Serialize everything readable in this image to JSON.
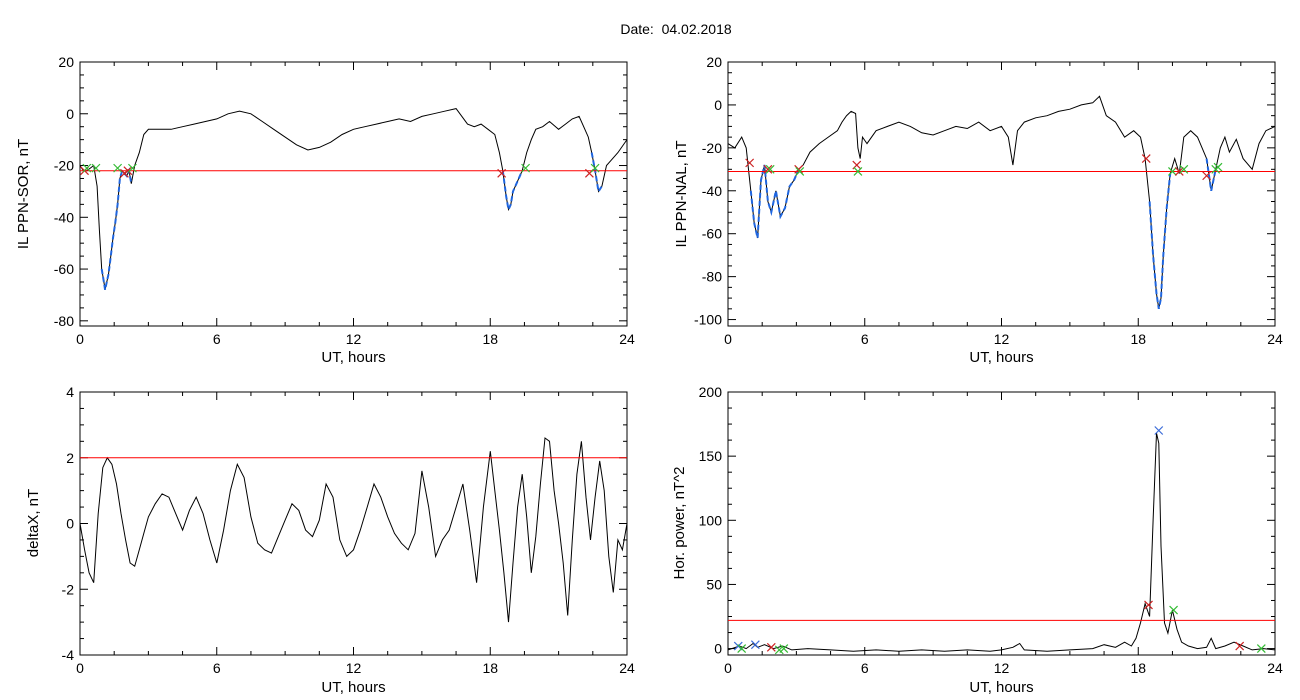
{
  "page": {
    "title": "Date:  04.02.2018",
    "colors": {
      "data": "#000000",
      "threshold": "#ff0000",
      "highlight": "#1f66e0",
      "marker_red": "#cc2222",
      "marker_green": "#33bb33",
      "marker_blue": "#3a6bd8"
    }
  },
  "chart_data": [
    {
      "id": "ppn-sor",
      "type": "line",
      "xlabel": "UT, hours",
      "ylabel": "IL PPN-SOR, nT",
      "xlim": [
        0,
        24
      ],
      "ylim": [
        -82,
        20
      ],
      "xticks": [
        0,
        6,
        12,
        18,
        24
      ],
      "yticks": [
        -80,
        -60,
        -40,
        -20,
        0,
        20
      ],
      "threshold": -22,
      "series": [
        {
          "x": [
            0,
            0.15,
            0.3,
            0.45,
            0.6,
            0.75,
            0.85,
            0.95,
            1.05,
            1.1,
            1.15,
            1.25,
            1.35,
            1.45,
            1.55,
            1.65,
            1.75,
            1.85,
            1.95,
            2.05,
            2.15,
            2.25,
            2.4,
            2.6,
            2.8,
            3.0,
            3.5,
            4.0,
            4.5,
            5.0,
            5.5,
            6.0,
            6.5,
            7.0,
            7.5,
            8.0,
            8.5,
            9.0,
            9.5,
            10.0,
            10.5,
            11.0,
            11.5,
            12.0,
            12.5,
            13.0,
            13.5,
            14.0,
            14.5,
            15.0,
            15.5,
            16.0,
            16.5,
            17.0,
            17.3,
            17.6,
            17.9,
            18.2,
            18.4,
            18.55,
            18.7,
            18.8,
            18.9,
            19.0,
            19.2,
            19.4,
            19.6,
            19.8,
            20.0,
            20.3,
            20.6,
            21.0,
            21.3,
            21.6,
            21.9,
            22.1,
            22.3,
            22.45,
            22.6,
            22.75,
            22.9,
            23.1,
            23.3,
            23.6,
            24.0
          ],
          "y": [
            -20,
            -22,
            -22,
            -21,
            -20,
            -28,
            -45,
            -60,
            -65,
            -68,
            -66,
            -62,
            -55,
            -48,
            -42,
            -35,
            -25,
            -22,
            -23,
            -24,
            -22,
            -27,
            -20,
            -15,
            -8,
            -6,
            -6,
            -6,
            -5,
            -4,
            -3,
            -2,
            0,
            1,
            0,
            -3,
            -6,
            -9,
            -12,
            -14,
            -13,
            -11,
            -8,
            -6,
            -5,
            -4,
            -3,
            -2,
            -3,
            -1,
            0,
            1,
            2,
            -4,
            -5,
            -4,
            -6,
            -8,
            -15,
            -22,
            -32,
            -37,
            -35,
            -30,
            -26,
            -22,
            -15,
            -10,
            -6,
            -5,
            -3,
            -6,
            -4,
            -2,
            -1,
            -5,
            -9,
            -15,
            -22,
            -30,
            -28,
            -20,
            -18,
            -15,
            -10
          ],
          "highlight_ranges": [
            [
              0.9,
              2.3
            ],
            [
              18.55,
              19.55
            ],
            [
              22.35,
              23.0
            ]
          ]
        }
      ],
      "markers": [
        {
          "x": 0.2,
          "y": -22,
          "color": "red"
        },
        {
          "x": 0.3,
          "y": -21,
          "color": "green"
        },
        {
          "x": 0.7,
          "y": -21,
          "color": "green"
        },
        {
          "x": 1.65,
          "y": -21,
          "color": "green"
        },
        {
          "x": 1.95,
          "y": -23,
          "color": "red"
        },
        {
          "x": 2.1,
          "y": -22,
          "color": "red"
        },
        {
          "x": 2.3,
          "y": -21,
          "color": "green"
        },
        {
          "x": 18.5,
          "y": -23,
          "color": "red"
        },
        {
          "x": 19.55,
          "y": -21,
          "color": "green"
        },
        {
          "x": 22.35,
          "y": -23,
          "color": "red"
        },
        {
          "x": 22.6,
          "y": -21,
          "color": "green"
        }
      ]
    },
    {
      "id": "ppn-nal",
      "type": "line",
      "xlabel": "UT, hours",
      "ylabel": "IL PPN-NAL, nT",
      "xlim": [
        0,
        24
      ],
      "ylim": [
        -103,
        20
      ],
      "xticks": [
        0,
        6,
        12,
        18,
        24
      ],
      "yticks": [
        -100,
        -80,
        -60,
        -40,
        -20,
        0,
        20
      ],
      "threshold": -31,
      "series": [
        {
          "x": [
            0,
            0.3,
            0.6,
            0.8,
            1.0,
            1.15,
            1.3,
            1.45,
            1.6,
            1.75,
            1.9,
            2.1,
            2.3,
            2.5,
            2.7,
            2.9,
            3.1,
            3.3,
            3.6,
            4.0,
            4.4,
            4.8,
            5.0,
            5.2,
            5.4,
            5.6,
            5.7,
            5.8,
            5.9,
            6.1,
            6.5,
            7.0,
            7.5,
            8.0,
            8.5,
            9.0,
            9.5,
            10.0,
            10.5,
            11.0,
            11.5,
            12.0,
            12.3,
            12.5,
            12.7,
            13.0,
            13.5,
            14.0,
            14.5,
            15.0,
            15.5,
            16.0,
            16.3,
            16.6,
            17.0,
            17.4,
            17.8,
            18.1,
            18.3,
            18.5,
            18.65,
            18.8,
            18.9,
            19.0,
            19.1,
            19.25,
            19.4,
            19.6,
            19.8,
            20.0,
            20.3,
            20.6,
            21.0,
            21.2,
            21.4,
            21.6,
            21.8,
            22.0,
            22.3,
            22.6,
            23.0,
            23.3,
            23.6,
            24.0
          ],
          "y": [
            -18,
            -20,
            -15,
            -20,
            -40,
            -55,
            -62,
            -35,
            -28,
            -45,
            -50,
            -40,
            -52,
            -48,
            -38,
            -35,
            -30,
            -28,
            -22,
            -18,
            -15,
            -12,
            -8,
            -5,
            -3,
            -4,
            -20,
            -25,
            -15,
            -18,
            -12,
            -10,
            -8,
            -10,
            -13,
            -14,
            -12,
            -10,
            -11,
            -8,
            -12,
            -10,
            -15,
            -28,
            -12,
            -8,
            -6,
            -5,
            -3,
            -2,
            0,
            1,
            4,
            -5,
            -8,
            -15,
            -12,
            -15,
            -25,
            -45,
            -70,
            -88,
            -95,
            -90,
            -70,
            -48,
            -32,
            -25,
            -32,
            -15,
            -12,
            -15,
            -25,
            -40,
            -30,
            -20,
            -15,
            -22,
            -16,
            -25,
            -30,
            -18,
            -12,
            -10
          ],
          "highlight_ranges": [
            [
              1.0,
              3.2
            ],
            [
              18.5,
              19.5
            ],
            [
              21.0,
              21.5
            ]
          ]
        }
      ],
      "markers": [
        {
          "x": 0.95,
          "y": -27,
          "color": "red"
        },
        {
          "x": 1.75,
          "y": -30,
          "color": "red"
        },
        {
          "x": 1.85,
          "y": -30,
          "color": "green"
        },
        {
          "x": 3.1,
          "y": -30,
          "color": "red"
        },
        {
          "x": 3.15,
          "y": -31,
          "color": "green"
        },
        {
          "x": 5.65,
          "y": -28,
          "color": "red"
        },
        {
          "x": 5.7,
          "y": -31,
          "color": "green"
        },
        {
          "x": 18.35,
          "y": -25,
          "color": "red"
        },
        {
          "x": 19.5,
          "y": -31,
          "color": "green"
        },
        {
          "x": 19.8,
          "y": -31,
          "color": "red"
        },
        {
          "x": 20.0,
          "y": -30,
          "color": "green"
        },
        {
          "x": 21.0,
          "y": -33,
          "color": "red"
        },
        {
          "x": 21.4,
          "y": -30,
          "color": "green"
        },
        {
          "x": 21.5,
          "y": -29,
          "color": "green"
        }
      ]
    },
    {
      "id": "deltax",
      "type": "line",
      "xlabel": "UT, hours",
      "ylabel": "deltaX, nT",
      "xlim": [
        0,
        24
      ],
      "ylim": [
        -4,
        4
      ],
      "xticks": [
        0,
        6,
        12,
        18,
        24
      ],
      "yticks": [
        -4,
        -2,
        0,
        2,
        4
      ],
      "threshold": 2,
      "series": [
        {
          "x": [
            0,
            0.2,
            0.4,
            0.6,
            0.8,
            1.0,
            1.2,
            1.4,
            1.6,
            1.8,
            2.0,
            2.2,
            2.4,
            2.6,
            2.8,
            3.0,
            3.3,
            3.6,
            3.9,
            4.2,
            4.5,
            4.8,
            5.1,
            5.4,
            5.7,
            6.0,
            6.3,
            6.6,
            6.9,
            7.2,
            7.5,
            7.8,
            8.1,
            8.4,
            8.7,
            9.0,
            9.3,
            9.6,
            9.9,
            10.2,
            10.5,
            10.8,
            11.1,
            11.4,
            11.7,
            12.0,
            12.3,
            12.6,
            12.9,
            13.2,
            13.5,
            13.8,
            14.1,
            14.4,
            14.7,
            15.0,
            15.3,
            15.6,
            15.9,
            16.2,
            16.5,
            16.8,
            17.1,
            17.4,
            17.7,
            18.0,
            18.2,
            18.4,
            18.6,
            18.8,
            19.0,
            19.2,
            19.4,
            19.6,
            19.8,
            20.0,
            20.2,
            20.4,
            20.6,
            20.8,
            21.0,
            21.2,
            21.4,
            21.6,
            21.8,
            22.0,
            22.2,
            22.4,
            22.6,
            22.8,
            23.0,
            23.2,
            23.4,
            23.6,
            23.8,
            24.0
          ],
          "y": [
            0,
            -0.8,
            -1.5,
            -1.8,
            0.3,
            1.7,
            2.0,
            1.8,
            1.2,
            0.3,
            -0.5,
            -1.2,
            -1.3,
            -0.8,
            -0.3,
            0.2,
            0.6,
            0.9,
            0.8,
            0.3,
            -0.2,
            0.4,
            0.8,
            0.3,
            -0.5,
            -1.2,
            -0.2,
            1.0,
            1.8,
            1.4,
            0.2,
            -0.6,
            -0.8,
            -0.9,
            -0.4,
            0.1,
            0.6,
            0.4,
            -0.2,
            -0.4,
            0.1,
            1.2,
            0.8,
            -0.5,
            -1.0,
            -0.8,
            -0.2,
            0.5,
            1.2,
            0.8,
            0.2,
            -0.3,
            -0.6,
            -0.8,
            -0.3,
            1.6,
            0.5,
            -1.0,
            -0.5,
            -0.2,
            0.5,
            1.2,
            -0.2,
            -1.8,
            0.5,
            2.2,
            1.0,
            -0.2,
            -1.5,
            -3.0,
            -1.2,
            0.5,
            1.5,
            0.2,
            -1.5,
            -0.4,
            1.2,
            2.6,
            2.5,
            1.0,
            0.0,
            -1.2,
            -2.8,
            -0.5,
            1.5,
            2.5,
            0.8,
            -0.5,
            0.8,
            1.9,
            1.0,
            -1.0,
            -2.1,
            -0.5,
            -0.8,
            0.0
          ],
          "highlight_ranges": []
        }
      ],
      "markers": []
    },
    {
      "id": "hor-power",
      "type": "line",
      "xlabel": "UT, hours",
      "ylabel": "Hor. power, nT^2",
      "xlim": [
        0,
        24
      ],
      "ylim": [
        -5,
        200
      ],
      "xticks": [
        0,
        6,
        12,
        18,
        24
      ],
      "yticks": [
        0,
        50,
        100,
        150,
        200
      ],
      "threshold": 22,
      "series": [
        {
          "x": [
            0,
            0.5,
            0.8,
            1.1,
            1.3,
            1.6,
            2.0,
            2.4,
            2.8,
            3.5,
            4.5,
            5.5,
            6.5,
            7.5,
            8.5,
            9.5,
            10.5,
            11.5,
            12.0,
            12.5,
            12.8,
            13.0,
            14.0,
            15.0,
            16.0,
            16.5,
            17.0,
            17.4,
            17.7,
            17.9,
            18.1,
            18.3,
            18.5,
            18.65,
            18.8,
            18.9,
            19.0,
            19.15,
            19.3,
            19.5,
            19.7,
            19.9,
            20.2,
            20.6,
            21.0,
            21.2,
            21.4,
            21.8,
            22.2,
            22.6,
            23.0,
            23.5,
            24.0
          ],
          "y": [
            -1,
            2,
            0,
            4,
            1,
            3,
            0,
            2,
            -1,
            0,
            -1,
            -2,
            -1,
            -2,
            -1,
            -2,
            -1,
            -2,
            -1,
            1,
            4,
            -1,
            -2,
            -1,
            0,
            3,
            1,
            5,
            2,
            8,
            20,
            35,
            25,
            100,
            168,
            160,
            80,
            20,
            12,
            30,
            15,
            5,
            2,
            0,
            1,
            8,
            0,
            2,
            5,
            2,
            -1,
            0,
            -1
          ],
          "highlight_ranges": []
        }
      ],
      "markers": [
        {
          "x": 0.45,
          "y": 2,
          "color": "blue"
        },
        {
          "x": 0.6,
          "y": 0,
          "color": "green"
        },
        {
          "x": 1.2,
          "y": 3,
          "color": "blue"
        },
        {
          "x": 1.9,
          "y": 1,
          "color": "red"
        },
        {
          "x": 2.25,
          "y": -1,
          "color": "green"
        },
        {
          "x": 2.45,
          "y": 0,
          "color": "green"
        },
        {
          "x": 18.45,
          "y": 34,
          "color": "red"
        },
        {
          "x": 18.9,
          "y": 170,
          "color": "blue"
        },
        {
          "x": 19.55,
          "y": 30,
          "color": "green"
        },
        {
          "x": 22.45,
          "y": 2,
          "color": "red"
        },
        {
          "x": 23.4,
          "y": 0,
          "color": "green"
        }
      ]
    }
  ]
}
